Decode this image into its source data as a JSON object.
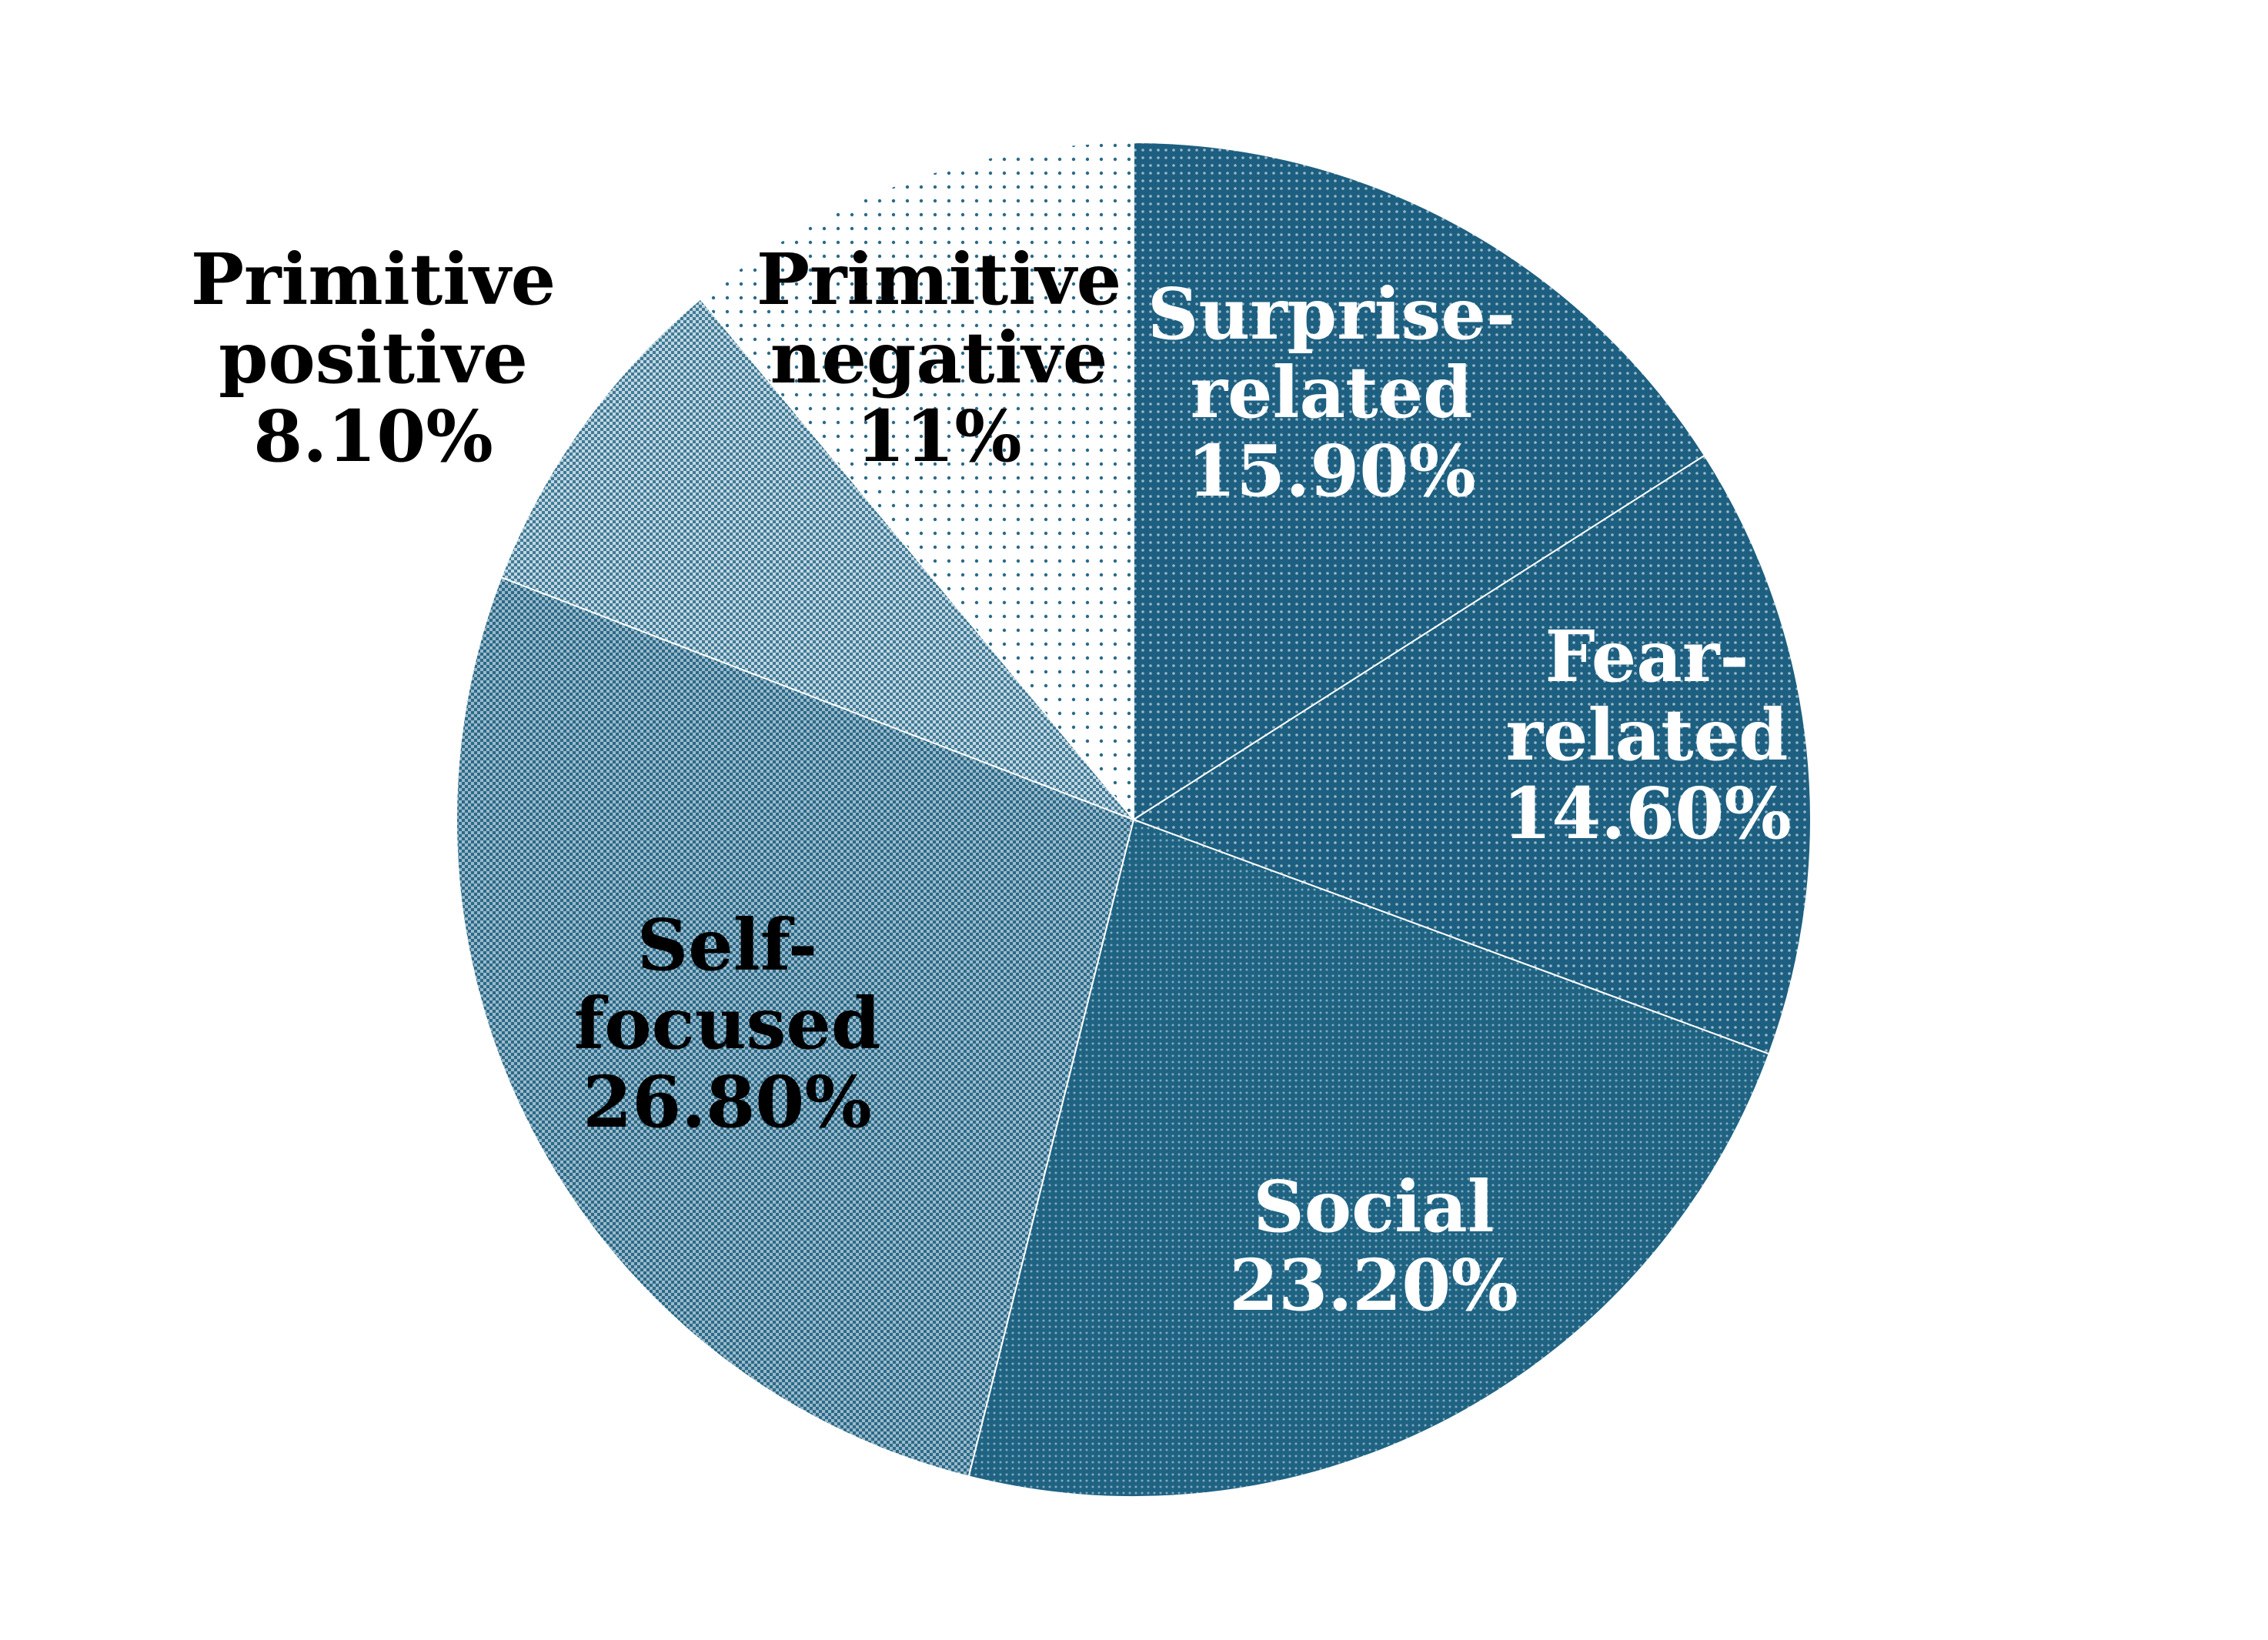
{
  "chart_data": {
    "type": "pie",
    "title": "",
    "start_angle_deg": 0,
    "direction": "clockwise",
    "slices": [
      {
        "label_lines": [
          "Surprise-",
          "related"
        ],
        "value_label": "15.90%",
        "value": 15.9,
        "color": "#1d5f80",
        "pattern": "dense-dots",
        "label_color": "#ffffff"
      },
      {
        "label_lines": [
          "Fear-",
          "related"
        ],
        "value_label": "14.60%",
        "value": 14.6,
        "color": "#1d5f80",
        "pattern": "dense-dots",
        "label_color": "#ffffff"
      },
      {
        "label_lines": [
          "Social"
        ],
        "value_label": "23.20%",
        "value": 23.2,
        "color": "#1d5f80",
        "pattern": "fine-dots",
        "label_color": "#ffffff"
      },
      {
        "label_lines": [
          "Self-",
          "focused"
        ],
        "value_label": "26.80%",
        "value": 26.8,
        "color": "#2a6a89",
        "pattern": "checker",
        "label_color": "#000000"
      },
      {
        "label_lines": [
          "Primitive",
          "positive"
        ],
        "value_label": "8.10%",
        "value": 8.1,
        "color": "#2a6a89",
        "pattern": "light-checker",
        "label_color": "#000000",
        "label_outside": true
      },
      {
        "label_lines": [
          "Primitive",
          "negative"
        ],
        "value_label": "11%",
        "value": 11,
        "color": "#2a6a89",
        "pattern": "sparse-dots",
        "label_color": "#000000"
      }
    ]
  }
}
